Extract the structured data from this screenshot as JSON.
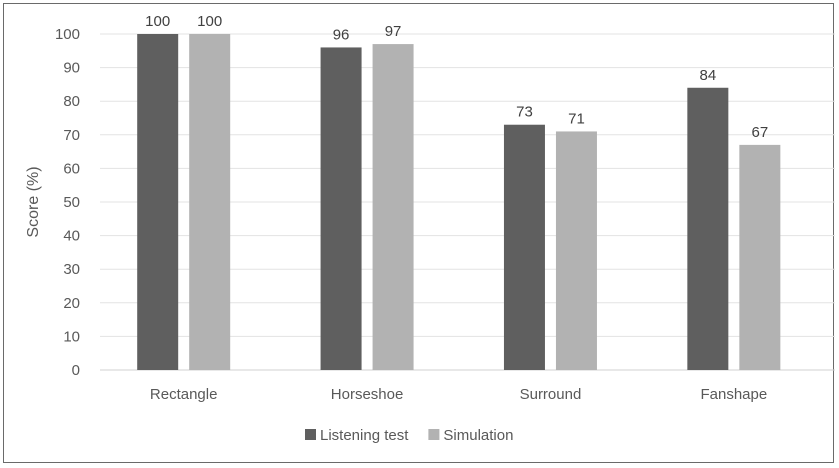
{
  "chart_data": {
    "type": "bar",
    "title": "",
    "xlabel": "",
    "ylabel": "Score (%)",
    "ylim": [
      0,
      100
    ],
    "yticks": [
      0,
      10,
      20,
      30,
      40,
      50,
      60,
      70,
      80,
      90,
      100
    ],
    "grid": true,
    "legend_placement": "bottom",
    "categories": [
      "Rectangle",
      "Horseshoe",
      "Surround",
      "Fanshape"
    ],
    "series": [
      {
        "name": "Listening test",
        "values": [
          100,
          96,
          73,
          84
        ],
        "color": "#5f5f5f"
      },
      {
        "name": "Simulation",
        "values": [
          100,
          97,
          71,
          67
        ],
        "color": "#b2b2b2"
      }
    ],
    "data_labels": true
  }
}
